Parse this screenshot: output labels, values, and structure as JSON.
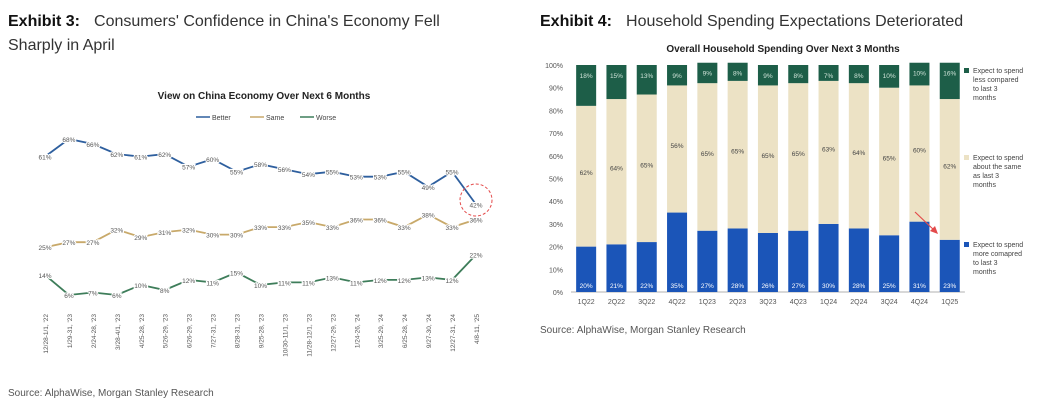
{
  "left": {
    "exhibit_label": "Exhibit 3:",
    "title_line1": "Consumers' Confidence in China's Economy Fell",
    "title_line2": "Sharply in April",
    "source": "Source: AlphaWise, Morgan Stanley Research"
  },
  "right": {
    "exhibit_label": "Exhibit 4:",
    "title": "Household Spending Expectations Deteriorated",
    "source": "Source: AlphaWise, Morgan Stanley Research"
  },
  "chart_data": [
    {
      "type": "line",
      "title": "View on China Economy Over Next 6 Months",
      "categories": [
        "12/28-1/1, '22",
        "1/29-31, '23",
        "2/24-28, '23",
        "3/28-4/1, '23",
        "4/25-28, '23",
        "5/26-29, '23",
        "6/26-29, '23",
        "7/27-31, '23",
        "8/28-31, '23",
        "9/25-28, '23",
        "10/30-11/1, '23",
        "11/28-12/1, '23",
        "12/27-29, '23",
        "1/24-26, '24",
        "3/25-29, '24",
        "6/25-28, '24",
        "9/27-30, '24",
        "12/27-31, '24",
        "4/8-11, '25"
      ],
      "series": [
        {
          "name": "Better",
          "color": "#2e5f9e",
          "values": [
            61,
            68,
            66,
            62,
            61,
            62,
            57,
            60,
            55,
            58,
            56,
            54,
            55,
            53,
            53,
            55,
            49,
            55,
            42
          ],
          "labels": [
            "61%",
            "68%",
            "66%",
            "62%",
            "61%",
            "62%",
            "57%",
            "60%",
            "55%",
            "58%",
            "56%",
            "54%",
            "55%",
            "53%",
            "53%",
            "55%",
            "49%",
            "55%",
            "42%"
          ]
        },
        {
          "name": "Same",
          "color": "#c8a96a",
          "values": [
            25,
            27,
            27,
            32,
            29,
            31,
            32,
            30,
            30,
            33,
            33,
            35,
            33,
            36,
            36,
            33,
            38,
            33,
            36
          ],
          "labels": [
            "25%",
            "27%",
            "27%",
            "32%",
            "29%",
            "31%",
            "32%",
            "30%",
            "30%",
            "33%",
            "33%",
            "35%",
            "33%",
            "36%",
            "36%",
            "33%",
            "38%",
            "33%",
            "36%"
          ]
        },
        {
          "name": "Worse",
          "color": "#3e7d5a",
          "values": [
            14,
            6,
            7,
            6,
            10,
            8,
            12,
            11,
            15,
            10,
            11,
            11,
            13,
            11,
            12,
            12,
            13,
            12,
            22
          ],
          "labels": [
            "14%",
            "6%",
            "7%",
            "6%",
            "10%",
            "8%",
            "12%",
            "11%",
            "15%",
            "10%",
            "11%",
            "11%",
            "13%",
            "11%",
            "12%",
            "12%",
            "13%",
            "12%",
            "22%"
          ]
        }
      ],
      "legend_position": "top-center",
      "highlight": "last-point-circle"
    },
    {
      "type": "bar",
      "stacked": true,
      "title": "Overall Household Spending Over Next 3 Months",
      "categories": [
        "1Q22",
        "2Q22",
        "3Q22",
        "4Q22",
        "1Q23",
        "2Q23",
        "3Q23",
        "4Q23",
        "1Q24",
        "2Q24",
        "3Q24",
        "4Q24",
        "1Q25"
      ],
      "yticks": [
        "0%",
        "10%",
        "20%",
        "30%",
        "40%",
        "50%",
        "60%",
        "70%",
        "80%",
        "90%",
        "100%"
      ],
      "ylim": [
        0,
        100
      ],
      "series": [
        {
          "name": "Expect to spend more comapred to last 3 months",
          "color": "#1b55b8",
          "text_color": "#ffffff",
          "values": [
            20,
            21,
            22,
            35,
            27,
            28,
            26,
            27,
            30,
            28,
            25,
            31,
            23
          ],
          "labels": [
            "20%",
            "21%",
            "22%",
            "35%",
            "27%",
            "28%",
            "26%",
            "27%",
            "30%",
            "28%",
            "25%",
            "31%",
            "23%"
          ]
        },
        {
          "name": "Expect to spend about the same as last 3 months",
          "color": "#ece2c5",
          "text_color": "#444444",
          "values": [
            62,
            64,
            65,
            56,
            65,
            65,
            65,
            65,
            63,
            64,
            65,
            60,
            62
          ],
          "labels": [
            "62%",
            "64%",
            "65%",
            "56%",
            "65%",
            "65%",
            "65%",
            "65%",
            "63%",
            "64%",
            "65%",
            "60%",
            "62%"
          ]
        },
        {
          "name": "Expect to spend less compared to last 3 months",
          "color": "#1d5e48",
          "text_color": "#cfe3d8",
          "values": [
            18,
            15,
            13,
            9,
            9,
            8,
            9,
            8,
            7,
            8,
            10,
            10,
            16
          ],
          "labels": [
            "18%",
            "15%",
            "13%",
            "9%",
            "9%",
            "8%",
            "9%",
            "8%",
            "7%",
            "8%",
            "10%",
            "10%",
            "16%"
          ]
        }
      ],
      "legend_position": "right",
      "highlight": "arrow-to-last-bar"
    }
  ]
}
